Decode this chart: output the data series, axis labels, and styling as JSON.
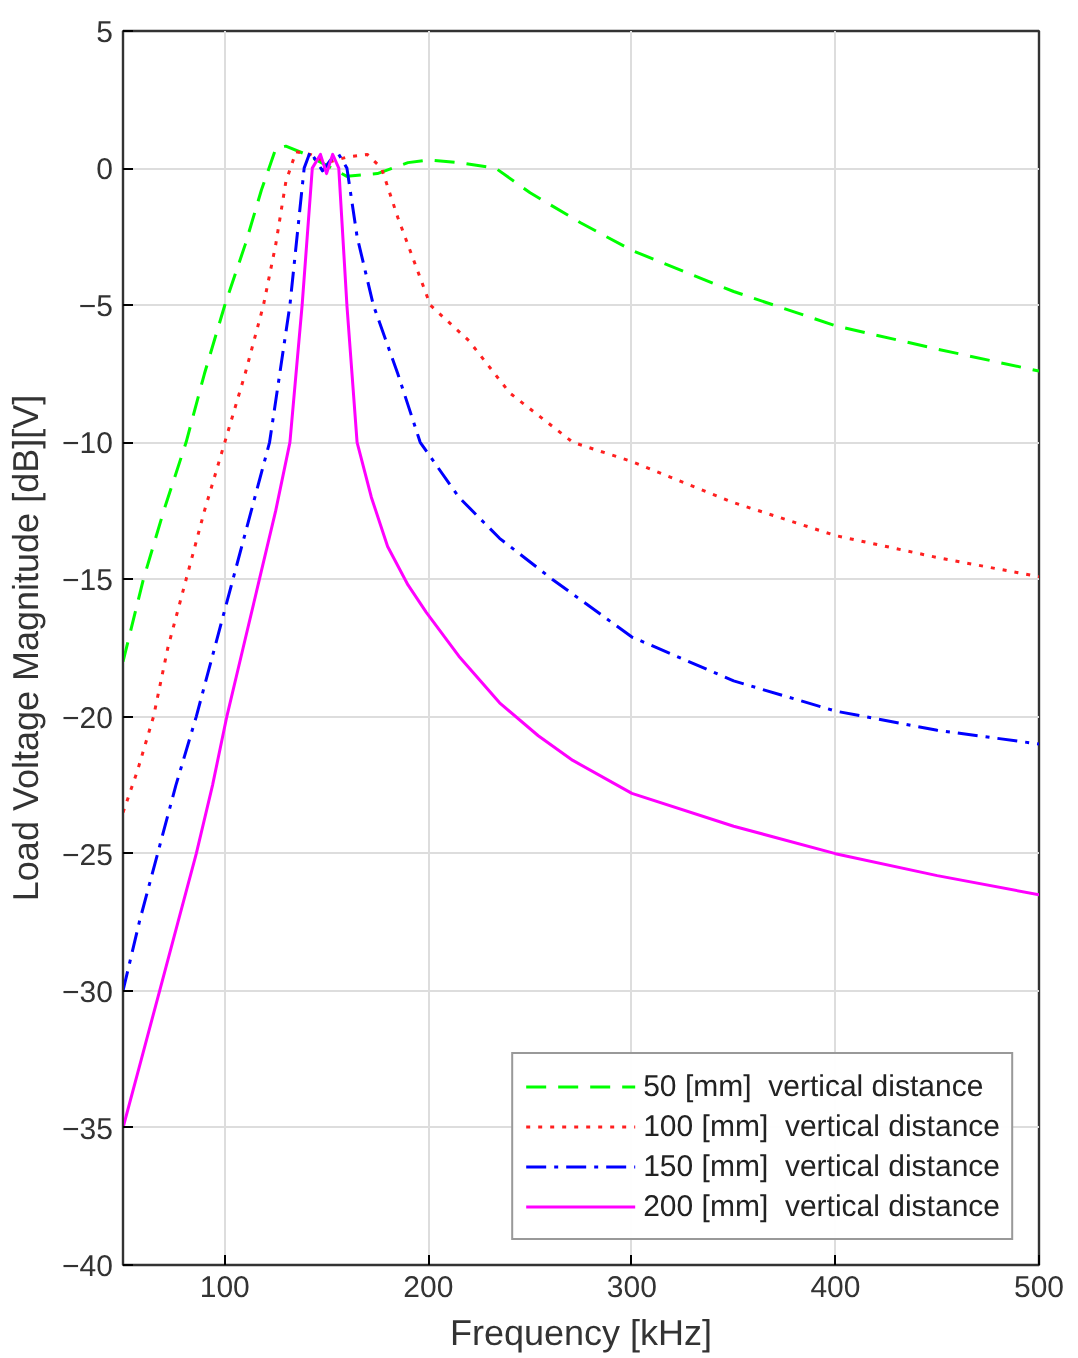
{
  "chart_data": {
    "type": "line",
    "xlabel": "Frequency [kHz]",
    "ylabel": "Load Voltage Magnitude [dB][V]",
    "xlim": [
      50,
      500
    ],
    "ylim": [
      -40,
      5
    ],
    "xticks": [
      100,
      200,
      300,
      400,
      500
    ],
    "yticks": [
      -40,
      -35,
      -30,
      -25,
      -20,
      -15,
      -10,
      -5,
      0,
      5
    ],
    "grid": true,
    "legend": "bottom right",
    "marker": "none",
    "series": [
      {
        "name": "50 [mm]  vertical distance",
        "color": "#00ff00",
        "line_style": "dashed",
        "x": [
          50,
          60,
          70,
          81,
          90,
          100,
          110,
          118,
          125,
          130,
          140,
          150,
          160,
          175,
          190,
          200,
          215,
          233,
          250,
          275,
          300,
          350,
          400,
          450,
          500
        ],
        "values": [
          -18,
          -15,
          -12.5,
          -10,
          -7.5,
          -5,
          -2.8,
          -0.8,
          0.7,
          0.8,
          0.5,
          0.1,
          -0.3,
          -0.2,
          0.2,
          0.3,
          0.2,
          0,
          -0.9,
          -2.0,
          -3.0,
          -4.5,
          -5.75,
          -6.6,
          -7.4
        ]
      },
      {
        "name": "100 [mm]  vertical distance",
        "color": "#ff2020",
        "line_style": "dotted",
        "x": [
          50,
          57,
          65,
          72,
          81,
          90,
          100,
          110,
          119,
          125,
          130,
          135,
          142,
          150,
          160,
          170,
          177,
          185,
          201,
          220,
          240,
          271,
          300,
          350,
          400,
          450,
          500
        ],
        "values": [
          -23.5,
          -22,
          -20,
          -17.5,
          -15,
          -12.5,
          -10,
          -7.5,
          -5,
          -2.8,
          -0.5,
          0.6,
          0.5,
          0.2,
          0.4,
          0.5,
          0,
          -1.8,
          -5,
          -6.3,
          -8.2,
          -10,
          -10.7,
          -12.2,
          -13.4,
          -14.2,
          -14.9
        ]
      },
      {
        "name": "150 [mm]  vertical distance",
        "color": "#0000ff",
        "line_style": "dashdot",
        "x": [
          50,
          58,
          67,
          76,
          86,
          95,
          104,
          113,
          122,
          132,
          139,
          142,
          148,
          152,
          156,
          160,
          165,
          173,
          185,
          196,
          215,
          235,
          261,
          300,
          350,
          400,
          450,
          500
        ],
        "values": [
          -30,
          -27.5,
          -25,
          -22.5,
          -20,
          -17.5,
          -15,
          -12.5,
          -10,
          -5,
          0,
          0.6,
          -0.1,
          0.3,
          0.5,
          0,
          -2.5,
          -5,
          -7.5,
          -10,
          -12,
          -13.5,
          -15,
          -17.1,
          -18.7,
          -19.8,
          -20.5,
          -21
        ]
      },
      {
        "name": "200 [mm]  vertical distance",
        "color": "#ff00ff",
        "line_style": "solid",
        "x": [
          50,
          59,
          68,
          77,
          86,
          94,
          101,
          109,
          117,
          125,
          132,
          138,
          143,
          147,
          150,
          153,
          156,
          160,
          165,
          172,
          180,
          190,
          199,
          215,
          235,
          254,
          271,
          300,
          350,
          400,
          450,
          500
        ],
        "values": [
          -35,
          -32.5,
          -30,
          -27.5,
          -25,
          -22.5,
          -20,
          -17.5,
          -15,
          -12.5,
          -10,
          -5,
          0,
          0.5,
          -0.2,
          0.5,
          0,
          -5,
          -10,
          -12,
          -13.8,
          -15.2,
          -16.2,
          -17.8,
          -19.5,
          -20.7,
          -21.6,
          -22.8,
          -24,
          -25,
          -25.8,
          -26.5
        ]
      }
    ]
  }
}
